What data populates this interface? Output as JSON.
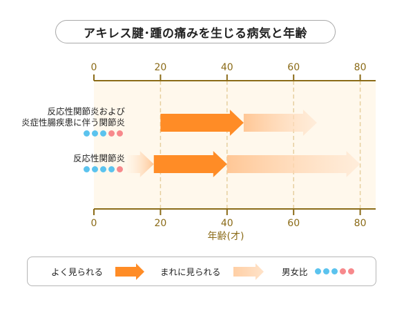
{
  "title": "アキレス腱･踵の痛みを生じる病気と年齢",
  "chart_data": {
    "type": "bar",
    "title": "アキレス腱･踵の痛みを生じる病気と年齢",
    "xlabel": "年齢(才)",
    "xlim": [
      0,
      85
    ],
    "xticks": [
      0,
      20,
      40,
      60,
      80
    ],
    "grid": true,
    "rows": [
      {
        "label_lines": [
          "反応性関節炎および",
          "炎症性腸疾患に伴う関節炎"
        ],
        "sex_ratio": [
          "male",
          "male",
          "male",
          "female",
          "female"
        ],
        "often": [
          20,
          45
        ],
        "rarely": [
          45,
          67
        ],
        "rarely_before": null
      },
      {
        "label_lines": [
          "反応性関節炎"
        ],
        "sex_ratio": [
          "male",
          "male",
          "male",
          "male",
          "female"
        ],
        "often": [
          18,
          40
        ],
        "rarely": [
          40,
          80
        ],
        "rarely_before": [
          10,
          18
        ]
      }
    ]
  },
  "legend": {
    "often_label": "よく見られる",
    "rarely_label": "まれに見られる",
    "ratio_label": "男女比",
    "ratio_dots": [
      "male",
      "male",
      "male",
      "female",
      "female"
    ]
  },
  "colors": {
    "often": "#ff8c26",
    "rarely": "#ffd2ac",
    "male": "#5bc3ee",
    "female": "#f7898c",
    "axis": "#8a6a16",
    "plot_bg": "#fff8ec",
    "grid": "#e6cf9f"
  }
}
